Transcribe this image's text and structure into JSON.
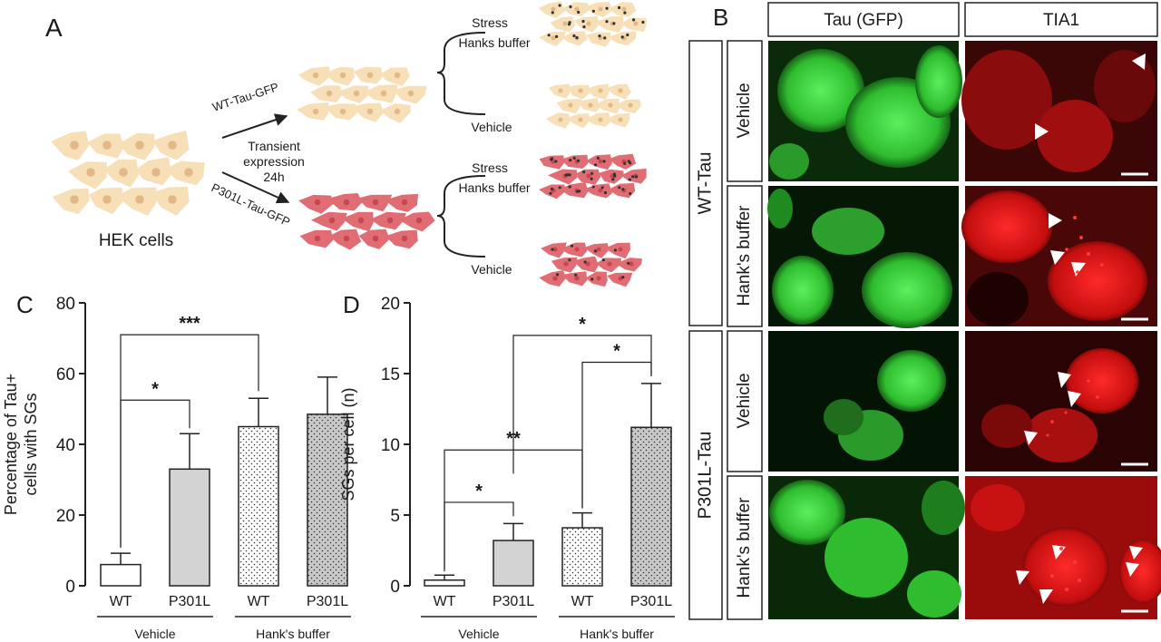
{
  "panels": {
    "a": "A",
    "b": "B",
    "c": "C",
    "d": "D"
  },
  "schematic": {
    "start_label": "HEK cells",
    "wt_arrow_label": "WT-Tau-GFP",
    "p301l_arrow_label": "P301L-Tau-GFP",
    "expression_line1": "Transient",
    "expression_line2": "expression",
    "expression_line3": "24h",
    "stress_label": "Stress",
    "hanks_label": "Hanks buffer",
    "vehicle_label": "Vehicle",
    "colors": {
      "wt_cell": "#f7dfb8",
      "wt_nucleus": "#e2b887",
      "p301l_cell": "#e06c74",
      "p301l_nucleus": "#c44651",
      "granule": "#333333"
    }
  },
  "microscopy": {
    "col_headers": [
      "Tau (GFP)",
      "TIA1"
    ],
    "row_groups": [
      {
        "label": "WT-Tau",
        "rows": [
          "Vehicle",
          "Hank's buffer"
        ]
      },
      {
        "label": "P301L-Tau",
        "rows": [
          "Vehicle",
          "Hank's buffer"
        ]
      }
    ],
    "colors": {
      "gfp": "#38d038",
      "tia1": "#e01414"
    }
  },
  "chart_data": [
    {
      "type": "bar",
      "panel": "C",
      "ylabel": "Percentage of Tau+ cells with SGs",
      "ylabel_line1": "Percentage of Tau+",
      "ylabel_line2": "cells with SGs",
      "ylim": [
        0,
        80
      ],
      "yticks": [
        "0",
        "20",
        "40",
        "60",
        "80"
      ],
      "categories": [
        "WT",
        "P301L",
        "WT",
        "P301L"
      ],
      "groups": [
        "Vehicle",
        "Hank's buffer"
      ],
      "values": [
        6,
        33,
        45,
        48.5
      ],
      "errors": [
        3.2,
        10,
        8,
        10.5
      ],
      "patterns": [
        "white",
        "gray",
        "dots-white",
        "dots-gray"
      ],
      "significance": [
        {
          "from": 0,
          "to": 1,
          "label": "*"
        },
        {
          "from": 0,
          "to": 2,
          "label": "***"
        }
      ]
    },
    {
      "type": "bar",
      "panel": "D",
      "ylabel": "SGs per cell (n)",
      "ylim": [
        0,
        20
      ],
      "yticks": [
        "0",
        "5",
        "10",
        "15",
        "20"
      ],
      "categories": [
        "WT",
        "P301L",
        "WT",
        "P301L"
      ],
      "groups": [
        "Vehicle",
        "Hank's buffer"
      ],
      "values": [
        0.4,
        3.2,
        4.1,
        11.2
      ],
      "errors": [
        0.35,
        1.2,
        1.05,
        3.1
      ],
      "patterns": [
        "white",
        "gray",
        "dots-white",
        "dots-gray"
      ],
      "significance": [
        {
          "from": 0,
          "to": 1,
          "label": "*"
        },
        {
          "from": 0,
          "to": 2,
          "label": "**"
        },
        {
          "from": 2,
          "to": 3,
          "label": "*"
        },
        {
          "from": 1,
          "to": 3,
          "label": "*"
        }
      ]
    }
  ]
}
